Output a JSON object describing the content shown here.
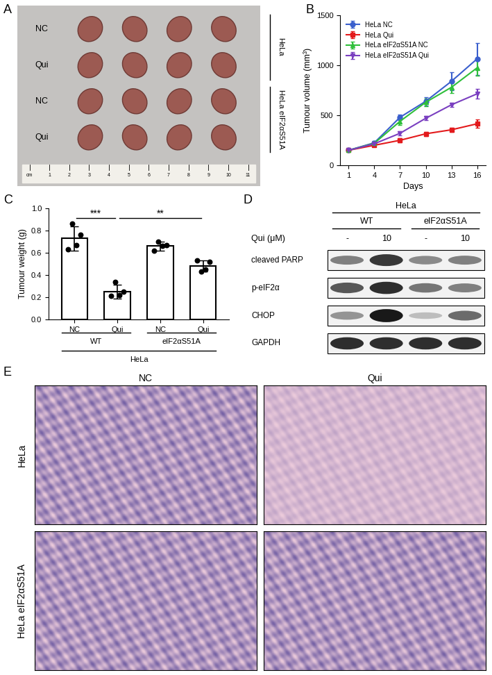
{
  "panel_labels": [
    "A",
    "B",
    "C",
    "D",
    "E"
  ],
  "photo": {
    "rows": [
      "NC",
      "Qui",
      "NC",
      "Qui"
    ],
    "groups": [
      {
        "label": "HeLa",
        "rows": [
          0,
          1
        ]
      },
      {
        "label": "HeLa eIF2αS51A",
        "rows": [
          2,
          3
        ]
      }
    ],
    "ruler": [
      "cm",
      "1",
      "2",
      "3",
      "4",
      "5",
      "6",
      "7",
      "8",
      "9",
      "10",
      "11"
    ]
  },
  "chart_data": [
    {
      "type": "line",
      "xlabel": "Days",
      "ylabel": "Tumour volume (mm³)",
      "x": [
        1,
        4,
        7,
        10,
        13,
        16
      ],
      "xlim": [
        0,
        17
      ],
      "xticks": [
        1,
        4,
        7,
        10,
        13,
        16
      ],
      "ylim": [
        0,
        1500
      ],
      "yticks": [
        0,
        500,
        1000,
        1500
      ],
      "legend": "upper left",
      "series": [
        {
          "name": "HeLa NC",
          "color": "#3a5fcd",
          "marker": "circle",
          "values": [
            150,
            225,
            480,
            640,
            840,
            1065
          ],
          "errors": [
            10,
            15,
            30,
            40,
            90,
            160
          ]
        },
        {
          "name": "HeLa Qui",
          "color": "#e31a1c",
          "marker": "square",
          "values": [
            150,
            200,
            250,
            315,
            355,
            415
          ],
          "errors": [
            5,
            10,
            20,
            20,
            20,
            40
          ]
        },
        {
          "name": "HeLa eIF2αS51A NC",
          "color": "#2fbf3b",
          "marker": "triangle_up",
          "values": [
            150,
            220,
            440,
            630,
            780,
            975
          ],
          "errors": [
            10,
            15,
            40,
            40,
            60,
            80
          ]
        },
        {
          "name": "HeLa eIF2αS51A Qui",
          "color": "#7a3fc0",
          "marker": "triangle_down",
          "values": [
            150,
            215,
            320,
            470,
            605,
            715
          ],
          "errors": [
            5,
            10,
            20,
            20,
            20,
            50
          ]
        }
      ]
    },
    {
      "type": "bar",
      "ylabel": "Tumour weight (g)",
      "categories": [
        "NC",
        "Qui",
        "NC",
        "Qui"
      ],
      "values": [
        0.73,
        0.25,
        0.66,
        0.48
      ],
      "errors": [
        0.11,
        0.06,
        0.04,
        0.05
      ],
      "points": [
        [
          0.63,
          0.86,
          0.67,
          0.76
        ],
        [
          0.21,
          0.34,
          0.22,
          0.25
        ],
        [
          0.62,
          0.7,
          0.66,
          0.67
        ],
        [
          0.53,
          0.43,
          0.45,
          0.52
        ]
      ],
      "color": "#ffffff",
      "ylim": [
        0,
        1.0
      ],
      "yticks": [
        {
          "value": 0,
          "label": "0.0"
        },
        0.2,
        0.4,
        0.6,
        0.8,
        {
          "value": 1.0,
          "label": "1.0"
        }
      ],
      "groups": [
        {
          "label": "WT",
          "categories": [
            0,
            1
          ]
        },
        {
          "label": "eIF2αS51A",
          "categories": [
            2,
            3
          ]
        }
      ],
      "group_label": "HeLa",
      "significance": [
        {
          "label": "***",
          "between": [
            0,
            1
          ]
        },
        {
          "label": "**",
          "between": [
            1,
            3
          ]
        }
      ]
    }
  ],
  "blot": {
    "cell_line": "HeLa",
    "genotypes": [
      {
        "label": "WT",
        "lanes": [
          0,
          1
        ]
      },
      {
        "label": "eIF2αS51A",
        "lanes": [
          2,
          3
        ]
      }
    ],
    "dose_label": "Qui (μM)",
    "doses": [
      "-",
      "10",
      "-",
      "10"
    ],
    "bands": [
      {
        "name": "cleaved PARP",
        "intensity": [
          0.5,
          0.85,
          0.45,
          0.5
        ]
      },
      {
        "name": "p-eIF2α",
        "intensity": [
          0.7,
          0.9,
          0.55,
          0.5
        ]
      },
      {
        "name": "CHOP",
        "intensity": [
          0.4,
          1.0,
          0.2,
          0.6
        ]
      },
      {
        "name": "GAPDH",
        "intensity": [
          0.9,
          0.9,
          0.9,
          0.9
        ]
      }
    ]
  },
  "histology": {
    "columns": [
      "NC",
      "Qui"
    ],
    "rows": [
      "HeLa",
      "HeLa eIF2αS51A"
    ]
  }
}
